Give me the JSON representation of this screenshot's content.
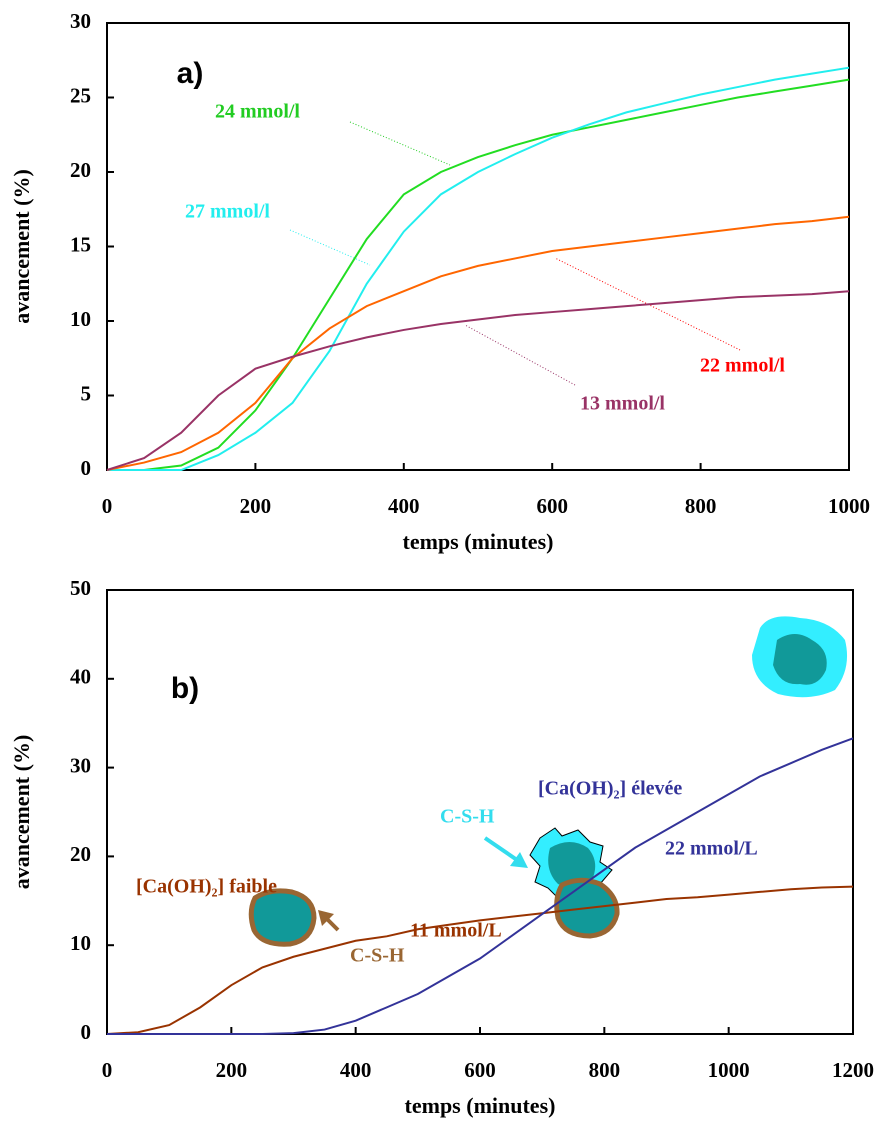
{
  "chart_data": [
    {
      "type": "line",
      "panel_label": "a)",
      "xlabel": "temps (minutes)",
      "ylabel": "avancement (%)",
      "x": [
        0,
        50,
        100,
        150,
        200,
        250,
        300,
        350,
        400,
        450,
        500,
        550,
        600,
        650,
        700,
        750,
        800,
        850,
        900,
        950,
        1000
      ],
      "series": [
        {
          "name": "24 mmol/l",
          "color": "#22dd22",
          "label_color": "#22cc22",
          "values": [
            0,
            0,
            0.3,
            1.5,
            4,
            7.5,
            11.5,
            15.5,
            18.5,
            20,
            21,
            21.8,
            22.5,
            23,
            23.5,
            24,
            24.5,
            25,
            25.4,
            25.8,
            26.2
          ]
        },
        {
          "name": "27 mmol/l",
          "color": "#22eeee",
          "label_color": "#22eeee",
          "values": [
            0,
            0,
            0,
            1,
            2.5,
            4.5,
            8,
            12.5,
            16,
            18.5,
            20,
            21.2,
            22.3,
            23.2,
            24,
            24.6,
            25.2,
            25.7,
            26.2,
            26.6,
            27
          ]
        },
        {
          "name": "22 mmol/l",
          "color": "#ff6600",
          "label_color": "#ff0000",
          "values": [
            0,
            0.5,
            1.2,
            2.5,
            4.5,
            7.5,
            9.5,
            11,
            12,
            13,
            13.7,
            14.2,
            14.7,
            15,
            15.3,
            15.6,
            15.9,
            16.2,
            16.5,
            16.7,
            17
          ]
        },
        {
          "name": "13 mmol/l",
          "color": "#993366",
          "label_color": "#993366",
          "values": [
            0,
            0.8,
            2.5,
            5,
            6.8,
            7.6,
            8.3,
            8.9,
            9.4,
            9.8,
            10.1,
            10.4,
            10.6,
            10.8,
            11,
            11.2,
            11.4,
            11.6,
            11.7,
            11.8,
            12
          ]
        }
      ],
      "xlim": [
        0,
        1000
      ],
      "xticks": [
        0,
        200,
        400,
        600,
        800,
        1000
      ],
      "ylim": [
        0,
        30
      ],
      "yticks": [
        0,
        5,
        10,
        15,
        20,
        25,
        30
      ]
    },
    {
      "type": "line",
      "panel_label": "b)",
      "xlabel": "temps (minutes)",
      "ylabel": "avancement (%)",
      "annotations": [
        "[Ca(OH)₂] faible",
        "[Ca(OH)₂] élevée",
        "C-S-H",
        "C-S-H"
      ],
      "x": [
        0,
        50,
        100,
        150,
        200,
        250,
        300,
        350,
        400,
        450,
        500,
        550,
        600,
        650,
        700,
        750,
        800,
        850,
        900,
        950,
        1000,
        1050,
        1100,
        1150,
        1200
      ],
      "series": [
        {
          "name": "11 mmol/L",
          "color": "#993300",
          "label_color": "#993300",
          "values": [
            0,
            0.2,
            1,
            3,
            5.5,
            7.5,
            8.7,
            9.6,
            10.5,
            11,
            11.8,
            12.3,
            12.8,
            13.2,
            13.6,
            14,
            14.4,
            14.8,
            15.2,
            15.4,
            15.7,
            16,
            16.3,
            16.5,
            16.6
          ]
        },
        {
          "name": "22 mmol/L",
          "color": "#333399",
          "label_color": "#333399",
          "values": [
            0,
            0,
            0,
            0,
            0,
            0,
            0.1,
            0.5,
            1.5,
            3,
            4.5,
            6.5,
            8.5,
            11,
            13.5,
            16,
            18.5,
            21,
            23,
            25,
            27,
            29,
            30.5,
            32,
            33.3
          ]
        }
      ],
      "xlim": [
        0,
        1200
      ],
      "xticks": [
        0,
        200,
        400,
        600,
        800,
        1000,
        1200
      ],
      "ylim": [
        0,
        50
      ],
      "yticks": [
        0,
        10,
        20,
        30,
        40,
        50
      ]
    }
  ]
}
